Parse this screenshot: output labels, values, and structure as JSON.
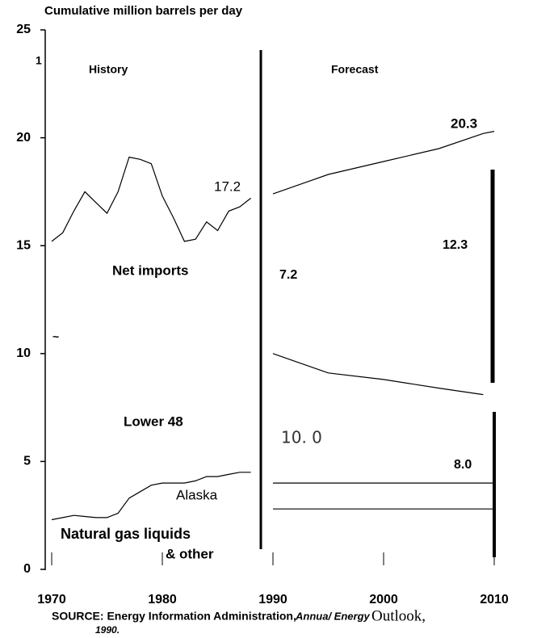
{
  "chart_data": {
    "type": "line",
    "title": "Cumulative million barrels per day",
    "x": [
      1970,
      1971,
      1972,
      1973,
      1974,
      1975,
      1976,
      1977,
      1978,
      1979,
      1980,
      1981,
      1982,
      1983,
      1984,
      1985,
      1986,
      1987,
      1988,
      1989,
      1990,
      1995,
      2000,
      2005,
      2009,
      2010
    ],
    "series": [
      {
        "color": "#000000",
        "values": [
          15.2,
          15.6,
          16.6,
          17.5,
          17.0,
          16.5,
          17.5,
          19.1,
          19.0,
          18.8,
          17.3,
          16.3,
          15.2,
          15.3,
          16.1,
          15.7,
          16.6,
          16.8,
          17.2,
          null,
          17.4,
          18.3,
          18.9,
          19.5,
          20.2,
          20.3
        ]
      },
      {
        "color": "#000000",
        "values": [
          null,
          null,
          null,
          null,
          null,
          null,
          null,
          null,
          null,
          null,
          null,
          null,
          null,
          null,
          null,
          null,
          null,
          null,
          null,
          null,
          10.0,
          9.1,
          8.8,
          8.4,
          8.1,
          null
        ]
      },
      {
        "color": "#000000",
        "values": [
          2.3,
          2.4,
          2.5,
          2.45,
          2.4,
          2.4,
          2.6,
          3.3,
          3.6,
          3.9,
          4.0,
          4.0,
          4.0,
          4.1,
          4.3,
          4.3,
          4.4,
          4.5,
          4.5,
          null,
          4.0,
          4.0,
          4.0,
          4.0,
          4.0,
          4.0
        ]
      },
      {
        "color": "#000000",
        "values": [
          null,
          null,
          null,
          null,
          null,
          null,
          null,
          null,
          null,
          null,
          null,
          null,
          null,
          null,
          null,
          null,
          null,
          null,
          null,
          null,
          2.8,
          2.8,
          2.8,
          2.8,
          2.8,
          2.8
        ]
      }
    ],
    "xlim": [
      1970,
      2010
    ],
    "xticks": [
      1970,
      1980,
      1990,
      2000,
      2010
    ],
    "ylim": [
      0,
      25
    ],
    "yticks": [
      0,
      5,
      10,
      15,
      20,
      25
    ],
    "annotations": [
      "History",
      "Forecast",
      "20.3",
      "17.2",
      "12.3",
      "7.2",
      "Net imports",
      "Lower 48",
      "10. 0",
      "8.0",
      "Alaska",
      "Natural gas liquids",
      "& other",
      "1",
      "~"
    ],
    "source": {
      "prefix": "SOURCE: Energy Information Administration,",
      "italic": "Annua/ Energy",
      "serif": "Outlook,",
      "year": "1990."
    }
  }
}
